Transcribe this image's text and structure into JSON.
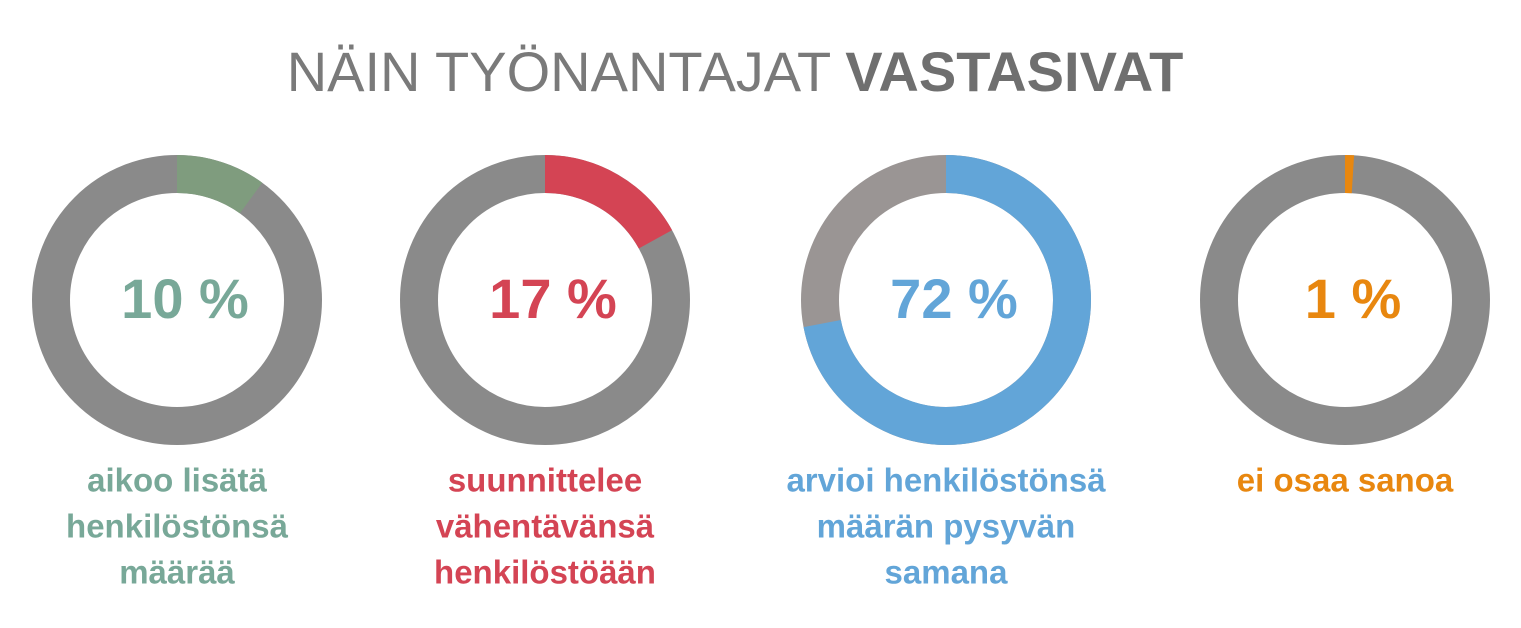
{
  "title_parts": [
    "NÄIN TYÖNANTAJAT",
    "VASTASIVAT"
  ],
  "chart_data": [
    {
      "type": "donut",
      "values": [
        10
      ],
      "value_labels": [
        "10 %"
      ],
      "color": "#7f9c7e",
      "text_color": "#78a898",
      "rest_color": "#8a8a8a",
      "label_lines": [
        "aikoo lisätä",
        "henkilöstönsä",
        "määrää"
      ]
    },
    {
      "type": "donut",
      "values": [
        17
      ],
      "value_labels": [
        "17 %"
      ],
      "color": "#d44454",
      "text_color": "#d44454",
      "rest_color": "#8a8a8a",
      "label_lines": [
        "suunnittelee",
        "vähentävänsä",
        "henkilöstöään"
      ]
    },
    {
      "type": "donut",
      "values": [
        72
      ],
      "value_labels": [
        "72 %"
      ],
      "color": "#62a5d8",
      "text_color": "#62a5d8",
      "rest_color": "#9a9594",
      "label_lines": [
        "arvioi henkilöstönsä",
        "määrän pysyvän",
        "samana"
      ]
    },
    {
      "type": "donut",
      "values": [
        1
      ],
      "value_labels": [
        "1 %"
      ],
      "color": "#e8870f",
      "text_color": "#e8870f",
      "rest_color": "#8a8a8a",
      "label_lines": [
        "ei osaa sanoa"
      ]
    }
  ]
}
